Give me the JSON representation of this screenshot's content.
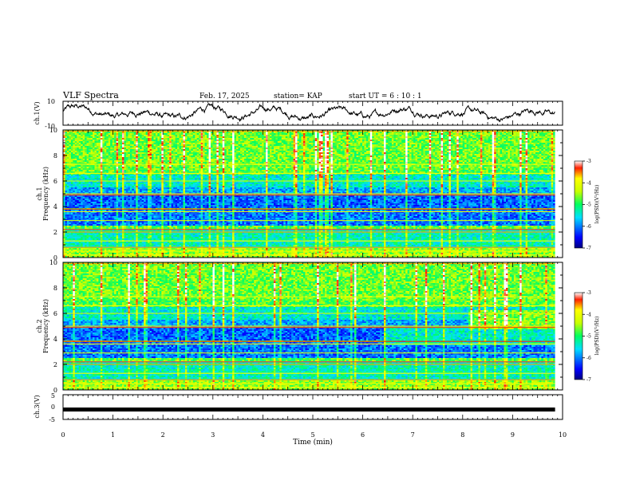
{
  "header": {
    "title": "VLF Spectra",
    "date": "Feb. 17, 2025",
    "station": "station= KAP",
    "start": "start  UT  =   6  : 10 : 1"
  },
  "chart_data": [
    {
      "type": "line",
      "name": "ch1-waveform",
      "ylabel": "ch.1(V)",
      "ylim": [
        -10,
        10
      ],
      "ytick_labels": [
        "10",
        "-10"
      ],
      "xlim": [
        0,
        10
      ],
      "description_values": "noisy waveform oscillating roughly between -6 and +6 V"
    },
    {
      "type": "heatmap",
      "name": "ch1-spectrogram",
      "ylabel": "ch.1\nFrequency (kHz)",
      "ylabel_top": "ch.1",
      "ylabel_bottom": "Frequency (kHz)",
      "ylim": [
        0,
        10
      ],
      "ytick_labels": [
        "0",
        "2",
        "4",
        "6",
        "8",
        "10"
      ],
      "xlim": [
        0,
        10
      ],
      "colorbar": {
        "label": "log(PSD)(V²/Hz)",
        "range": [
          -7,
          -3
        ],
        "tick_labels": [
          "-3",
          "-4",
          "-5",
          "-6",
          "-7"
        ]
      }
    },
    {
      "type": "heatmap",
      "name": "ch2-spectrogram",
      "ylabel": "ch.2\nFrequency (kHz)",
      "ylabel_top": "ch.2",
      "ylabel_bottom": "Frequency (kHz)",
      "ylim": [
        0,
        10
      ],
      "ytick_labels": [
        "0",
        "2",
        "4",
        "6",
        "8",
        "10"
      ],
      "xlim": [
        0,
        10
      ],
      "colorbar": {
        "label": "log(PSD)(V²/Hz)",
        "range": [
          -7,
          -3
        ],
        "tick_labels": [
          "-3",
          "-4",
          "-5",
          "-6",
          "-7"
        ]
      }
    },
    {
      "type": "line",
      "name": "ch3-waveform",
      "ylabel": "ch.3(V)",
      "ylim": [
        -5,
        5
      ],
      "ytick_labels": [
        "5",
        "0",
        "-5"
      ],
      "xlim": [
        0,
        10
      ],
      "values_constant": -1.0
    }
  ],
  "xaxis": {
    "label": "Time (min)",
    "tick_labels": [
      "0",
      "1",
      "2",
      "3",
      "4",
      "5",
      "6",
      "7",
      "8",
      "9",
      "10"
    ],
    "data_end": 9.85
  }
}
